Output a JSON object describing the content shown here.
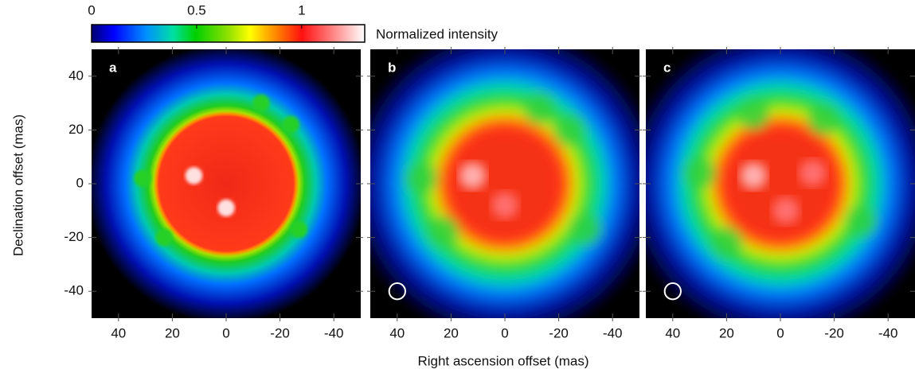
{
  "figure": {
    "xlabel": "Right ascension offset (mas)",
    "ylabel": "Declination offset (mas)",
    "colorbar": {
      "label": "Normalized intensity",
      "lim": [
        0,
        1.3
      ],
      "ticks": [
        0,
        0.5,
        1
      ]
    }
  },
  "chart_data": [
    {
      "type": "image",
      "label": "a",
      "xlim": [
        50,
        -50
      ],
      "ylim": [
        -50,
        50
      ],
      "xticks": [
        40,
        20,
        0,
        -20,
        -40
      ],
      "yticks": [
        40,
        20,
        0,
        -20,
        -40
      ],
      "ytick_labels": true
    },
    {
      "type": "image",
      "label": "b",
      "xlim": [
        50,
        -50
      ],
      "ylim": [
        -50,
        50
      ],
      "xticks": [
        40,
        20,
        0,
        -20,
        -40
      ],
      "yticks": [
        40,
        20,
        0,
        -20,
        -40
      ],
      "ytick_labels": false
    },
    {
      "type": "image",
      "label": "c",
      "xlim": [
        50,
        -50
      ],
      "ylim": [
        -50,
        50
      ],
      "xticks": [
        40,
        20,
        0,
        -20,
        -40
      ],
      "yticks": [
        40,
        20,
        0,
        -20,
        -40
      ],
      "ytick_labels": false
    }
  ]
}
